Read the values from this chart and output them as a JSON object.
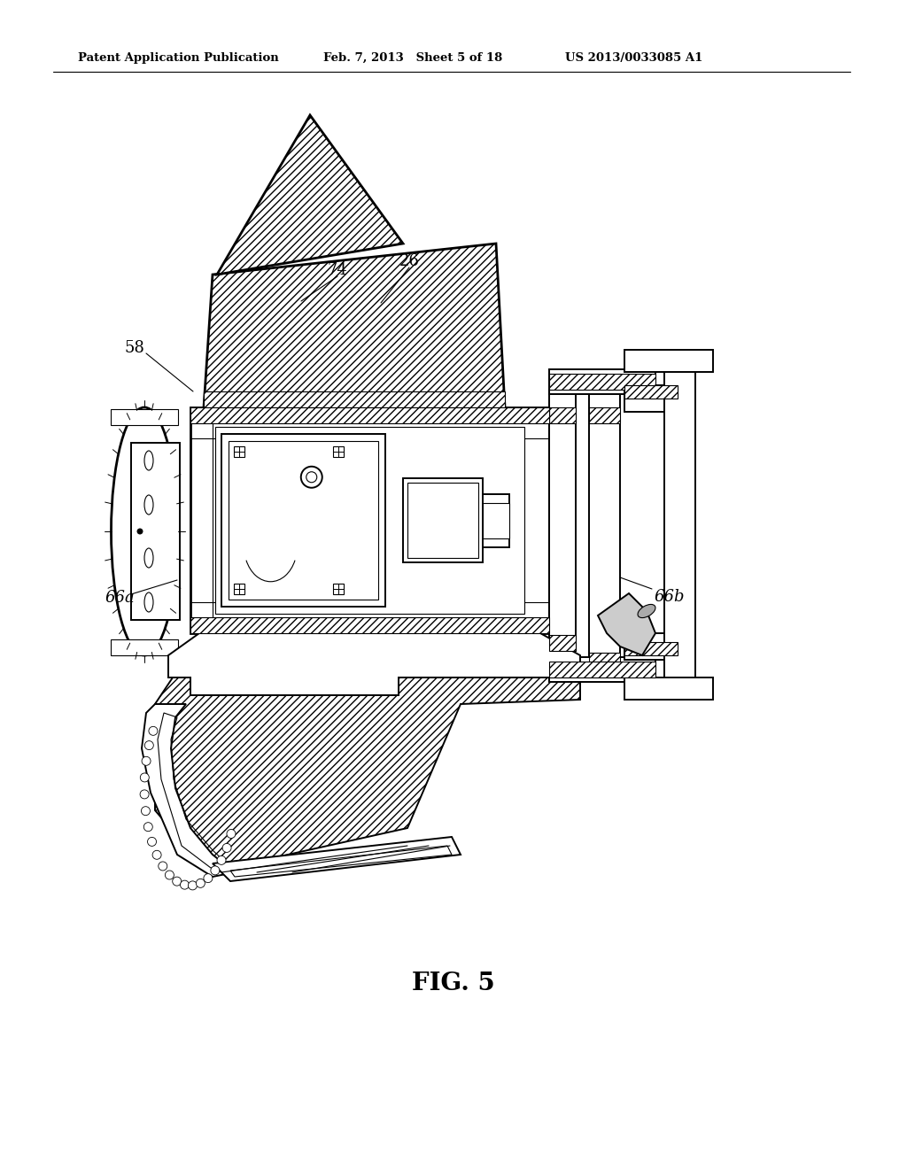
{
  "bg_color": "#ffffff",
  "line_color": "#000000",
  "header_left": "Patent Application Publication",
  "header_center": "Feb. 7, 2013   Sheet 5 of 18",
  "header_right": "US 2013/0033085 A1",
  "figure_label": "FIG. 5",
  "lw_main": 1.4,
  "lw_thin": 0.8,
  "lw_thick": 2.0,
  "label_fontsize": 13
}
